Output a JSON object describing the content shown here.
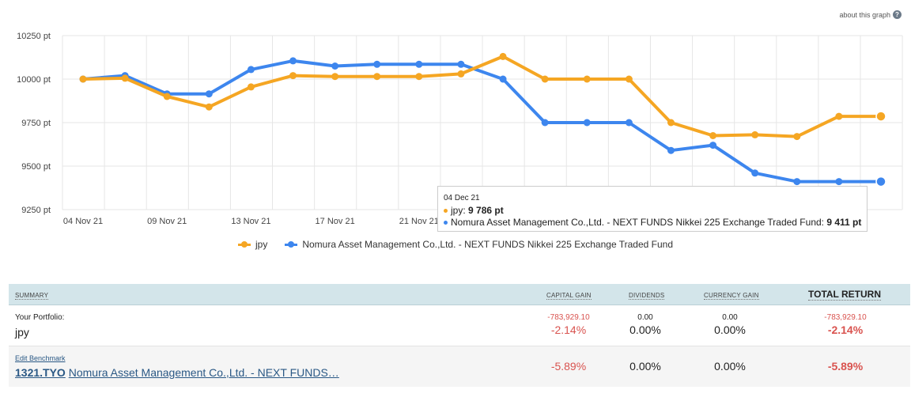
{
  "about_link": "about this graph",
  "about_icon": "question-icon",
  "colors": {
    "jpy": "#f5a623",
    "fund": "#3d86ee",
    "negative": "#d9534f"
  },
  "chart_data": {
    "type": "line",
    "title": "",
    "xlabel": "",
    "ylabel": "",
    "y_unit": "pt",
    "ylim": [
      9250,
      10250
    ],
    "yticks": [
      "10250 pt",
      "10000 pt",
      "9750 pt",
      "9500 pt",
      "9250 pt"
    ],
    "xticks": [
      "04 Nov 21",
      "09 Nov 21",
      "13 Nov 21",
      "17 Nov 21",
      "21 Nov 21"
    ],
    "grid": true,
    "legend_position": "bottom",
    "series": [
      {
        "name": "jpy",
        "values": [
          10000,
          10005,
          9900,
          9840,
          9955,
          10020,
          10015,
          10015,
          10015,
          10030,
          10130,
          10000,
          10000,
          10000,
          9750,
          9675,
          9680,
          9670,
          9786,
          9786
        ]
      },
      {
        "name": "Nomura Asset Management Co.,Ltd. - NEXT FUNDS Nikkei 225 Exchange Traded Fund",
        "values": [
          10000,
          10020,
          9915,
          9915,
          10055,
          10105,
          10075,
          10085,
          10085,
          10085,
          10000,
          9750,
          9750,
          9750,
          9590,
          9620,
          9460,
          9411,
          9411,
          9411
        ]
      }
    ]
  },
  "tooltip": {
    "date": "04 Dec 21",
    "jpy_label": "jpy:",
    "jpy_value": "9 786 pt",
    "fund_label": "Nomura Asset Management Co.,Ltd. - NEXT FUNDS Nikkei 225 Exchange Traded Fund:",
    "fund_value": "9 411 pt"
  },
  "summary": {
    "header": {
      "summary": "Summary",
      "capital_gain": "Capital gain",
      "dividends": "Dividends",
      "currency_gain": "Currency gain",
      "total_return": "TOTAL RETURN"
    },
    "portfolio": {
      "label": "Your Portfolio:",
      "name": "jpy",
      "capital_gain_amount": "-783,929.10",
      "capital_gain_pct": "-2.14%",
      "dividends_amount": "0.00",
      "dividends_pct": "0.00%",
      "currency_amount": "0.00",
      "currency_pct": "0.00%",
      "total_amount": "-783,929.10",
      "total_pct": "-2.14%"
    },
    "benchmark": {
      "edit_label": "Edit Benchmark",
      "ticker": "1321.TYO",
      "name": "Nomura Asset Management Co.,Ltd. - NEXT FUNDS…",
      "capital_gain_pct": "-5.89%",
      "dividends_pct": "0.00%",
      "currency_pct": "0.00%",
      "total_pct": "-5.89%"
    }
  }
}
